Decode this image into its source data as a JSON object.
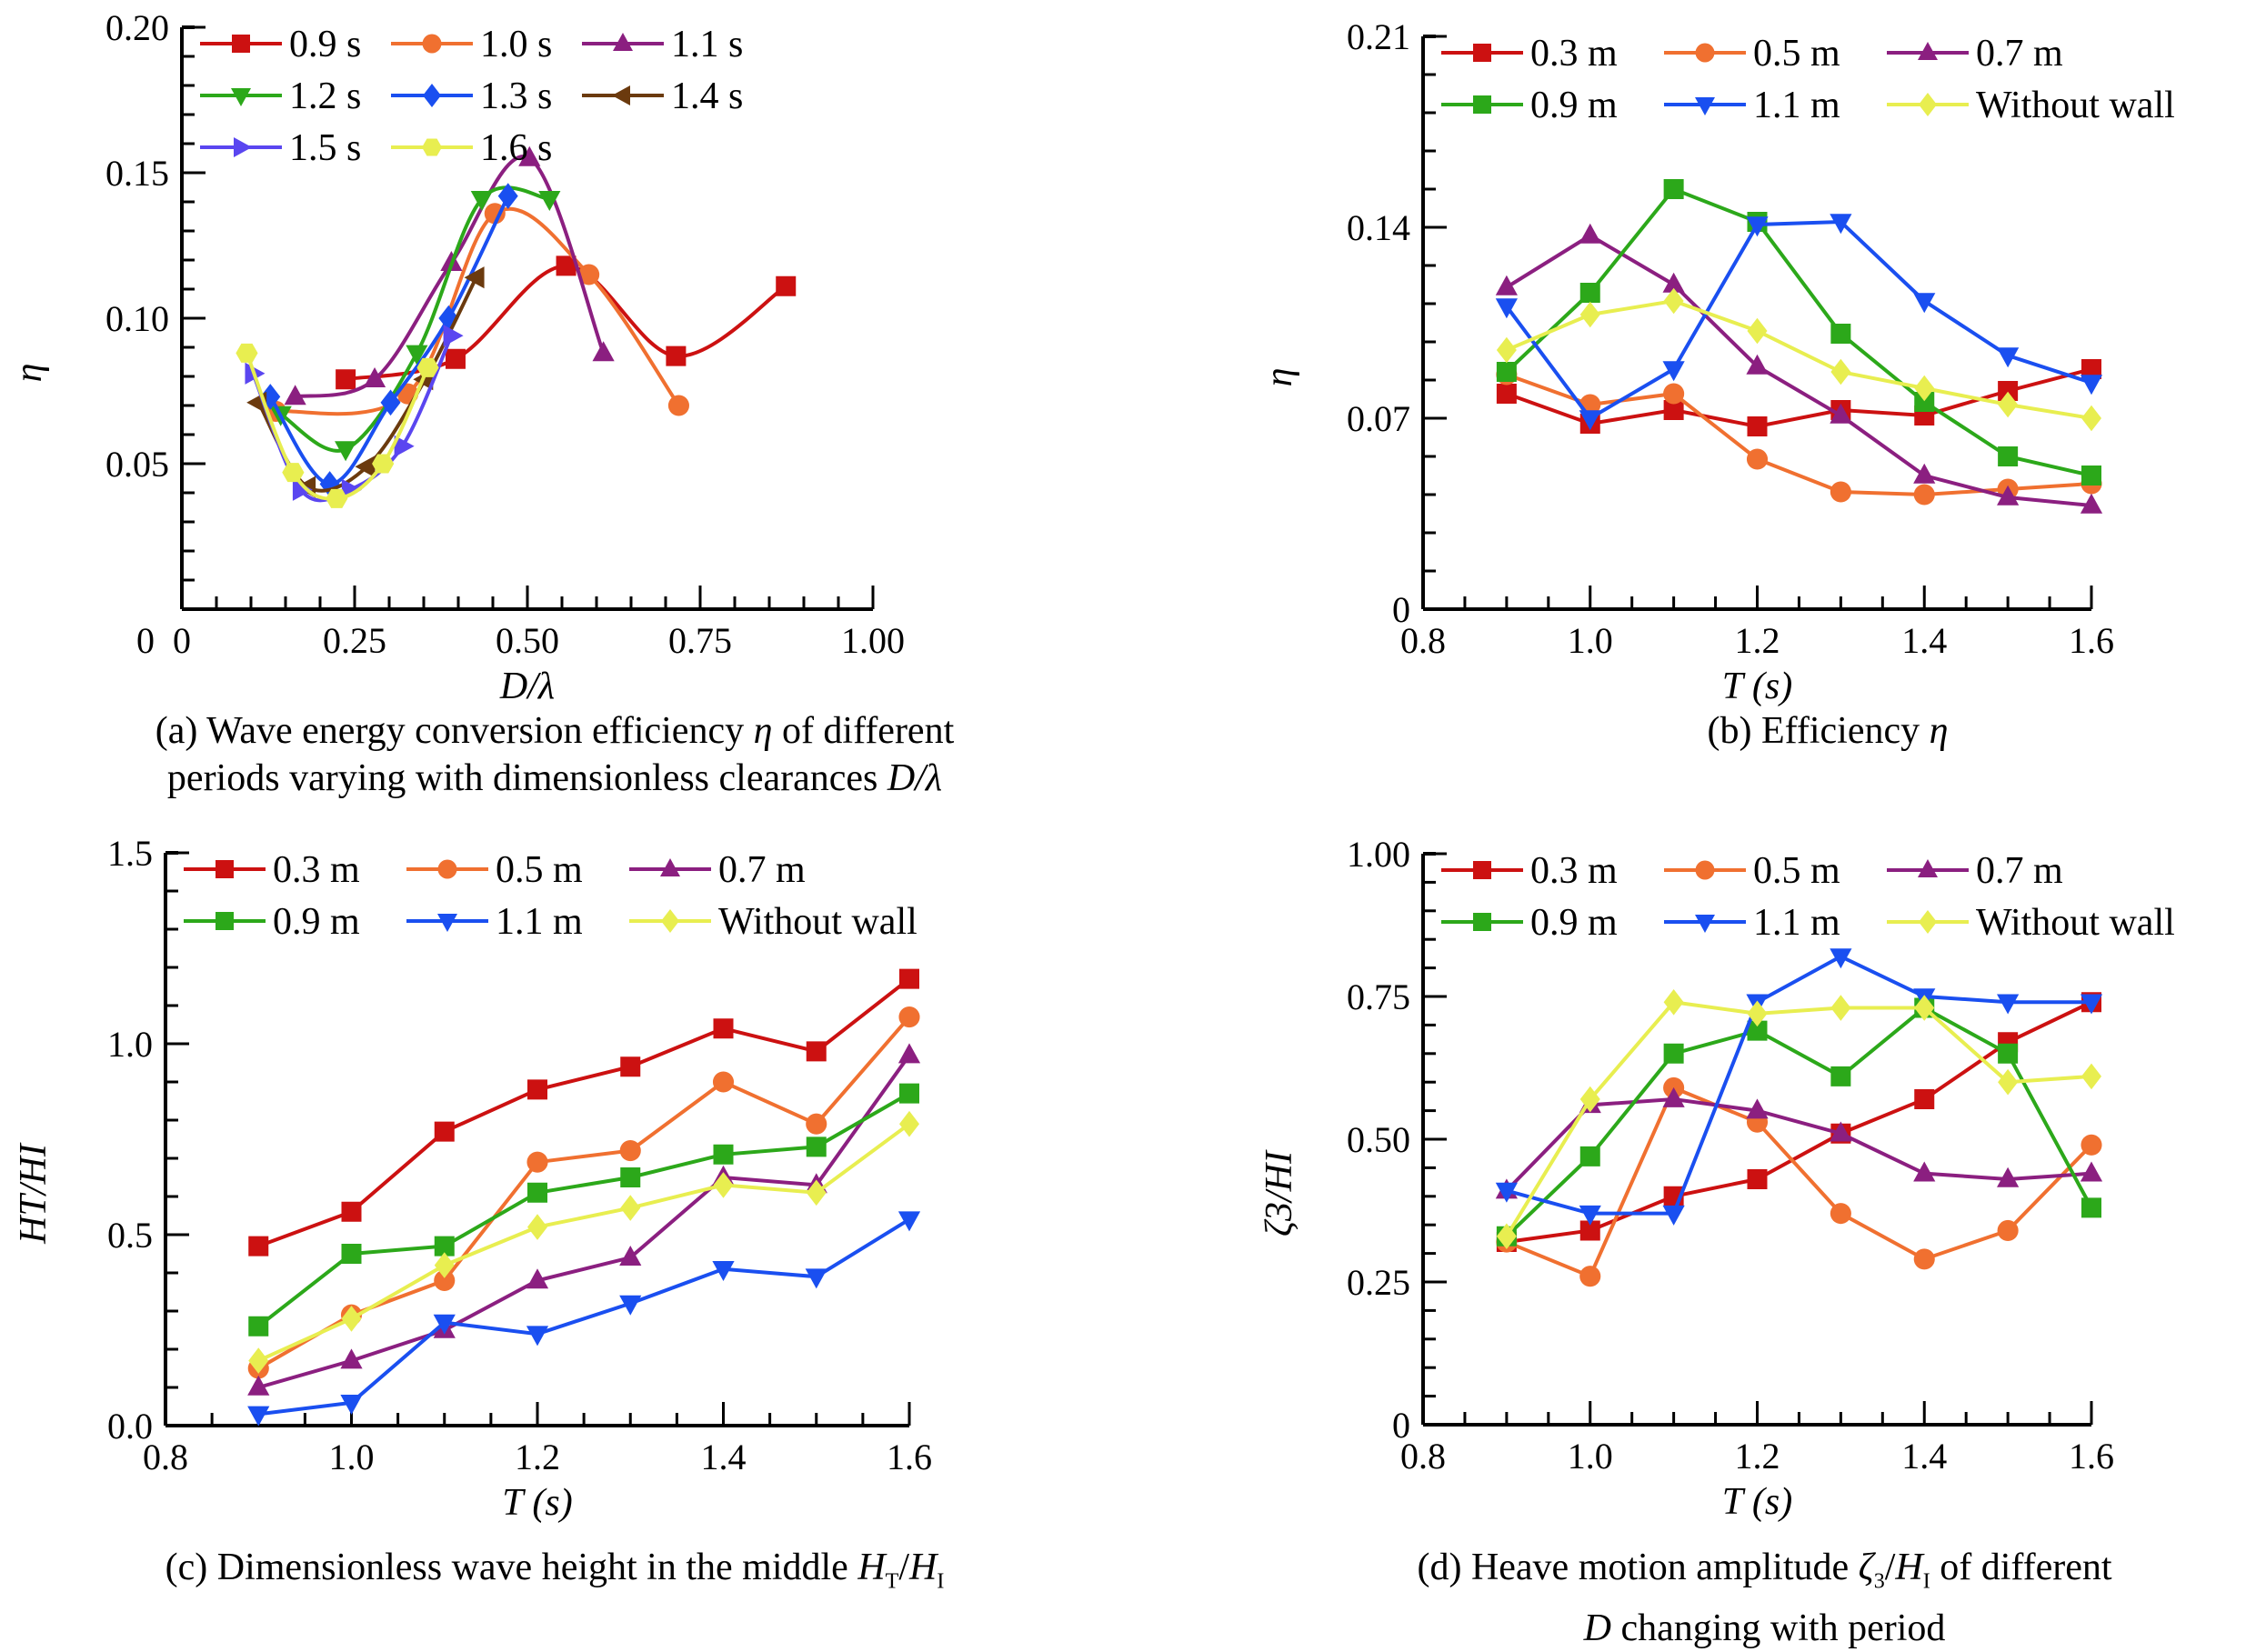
{
  "chart_data": [
    {
      "id": "a",
      "type": "line",
      "smooth": true,
      "title": "",
      "caption": "(a) Wave energy conversion efficiency η of different periods varying with dimensionless clearances D/λ",
      "xlabel": "D/λ",
      "ylabel": "η",
      "xlim": [
        0,
        1.0
      ],
      "ylim": [
        0,
        0.2
      ],
      "xticks": [
        "0",
        "0.25",
        "0.50",
        "0.75",
        "1.00"
      ],
      "xtick_values": [
        0,
        0.25,
        0.5,
        0.75,
        1.0
      ],
      "yticks": [
        "0.05",
        "0.10",
        "0.15",
        "0.20"
      ],
      "ytick_values": [
        0.05,
        0.1,
        0.15,
        0.2
      ],
      "x_minor_step": 0.05,
      "y_minor_step": 0.01,
      "legend_position": "top-left",
      "legend_columns": 3,
      "series": [
        {
          "name": "0.9 s",
          "color": "#cc1111",
          "marker": "square",
          "x": [
            0.237,
            0.396,
            0.556,
            0.715,
            0.874
          ],
          "y": [
            0.079,
            0.086,
            0.118,
            0.087,
            0.111
          ]
        },
        {
          "name": "1.0 s",
          "color": "#f07030",
          "marker": "circle",
          "x": [
            0.136,
            0.327,
            0.453,
            0.589,
            0.719
          ],
          "y": [
            0.068,
            0.074,
            0.136,
            0.115,
            0.07
          ]
        },
        {
          "name": "1.1 s",
          "color": "#8b1f80",
          "marker": "triangle-up",
          "x": [
            0.164,
            0.279,
            0.39,
            0.503,
            0.61
          ],
          "y": [
            0.073,
            0.079,
            0.119,
            0.155,
            0.088
          ]
        },
        {
          "name": "1.2 s",
          "color": "#2ca81a",
          "marker": "triangle-down",
          "x": [
            0.143,
            0.237,
            0.34,
            0.434,
            0.532
          ],
          "y": [
            0.067,
            0.055,
            0.088,
            0.141,
            0.141
          ]
        },
        {
          "name": "1.3 s",
          "color": "#1a4ff0",
          "marker": "diamond",
          "x": [
            0.128,
            0.214,
            0.302,
            0.386,
            0.472
          ],
          "y": [
            0.073,
            0.043,
            0.071,
            0.1,
            0.142
          ]
        },
        {
          "name": "1.4 s",
          "color": "#6b3a0e",
          "marker": "triangle-left",
          "x": [
            0.111,
            0.182,
            0.268,
            0.352,
            0.426
          ],
          "y": [
            0.071,
            0.042,
            0.049,
            0.079,
            0.114
          ]
        },
        {
          "name": "1.5 s",
          "color": "#5a46f0",
          "marker": "triangle-right",
          "x": [
            0.103,
            0.172,
            0.243,
            0.319,
            0.39
          ],
          "y": [
            0.081,
            0.041,
            0.041,
            0.056,
            0.094
          ]
        },
        {
          "name": "1.6 s",
          "color": "#e8ee50",
          "marker": "hexagon",
          "x": [
            0.094,
            0.161,
            0.224,
            0.291,
            0.356
          ],
          "y": [
            0.088,
            0.047,
            0.038,
            0.05,
            0.083
          ]
        }
      ]
    },
    {
      "id": "b",
      "type": "line",
      "smooth": false,
      "title": "",
      "caption": "(b) Efficiency η",
      "xlabel": "T (s)",
      "ylabel": "η",
      "xlim": [
        0.8,
        1.6
      ],
      "ylim": [
        0,
        0.21
      ],
      "xticks": [
        "0.8",
        "1.0",
        "1.2",
        "1.4",
        "1.6"
      ],
      "xtick_values": [
        0.8,
        1.0,
        1.2,
        1.4,
        1.6
      ],
      "yticks": [
        "0",
        "0.07",
        "0.14",
        "0.21"
      ],
      "ytick_values": [
        0,
        0.07,
        0.14,
        0.21
      ],
      "x_minor_step": 0.05,
      "y_minor_step": 0.014,
      "legend_position": "top",
      "legend_columns": 3,
      "x": [
        0.9,
        1.0,
        1.1,
        1.2,
        1.3,
        1.4,
        1.5,
        1.6
      ],
      "series": [
        {
          "name": "0.3 m",
          "color": "#cc1111",
          "marker": "square",
          "y": [
            0.079,
            0.068,
            0.073,
            0.067,
            0.073,
            0.071,
            0.08,
            0.088
          ]
        },
        {
          "name": "0.5 m",
          "color": "#f07030",
          "marker": "circle",
          "y": [
            0.086,
            0.075,
            0.079,
            0.055,
            0.043,
            0.042,
            0.044,
            0.046
          ]
        },
        {
          "name": "0.7 m",
          "color": "#8b1f80",
          "marker": "triangle-up",
          "y": [
            0.118,
            0.137,
            0.119,
            0.089,
            0.071,
            0.049,
            0.041,
            0.038
          ]
        },
        {
          "name": "0.9 m",
          "color": "#2ca81a",
          "marker": "square",
          "y": [
            0.087,
            0.116,
            0.154,
            0.142,
            0.101,
            0.076,
            0.056,
            0.049
          ]
        },
        {
          "name": "1.1 m",
          "color": "#1a4ff0",
          "marker": "triangle-down",
          "y": [
            0.111,
            0.07,
            0.088,
            0.141,
            0.142,
            0.113,
            0.093,
            0.083
          ]
        },
        {
          "name": "Without wall",
          "color": "#e8ee50",
          "marker": "diamond",
          "y": [
            0.095,
            0.108,
            0.113,
            0.102,
            0.087,
            0.081,
            0.075,
            0.07
          ]
        }
      ]
    },
    {
      "id": "c",
      "type": "line",
      "smooth": false,
      "title": "",
      "caption": "(c) Dimensionless wave height in the middle HT/HI",
      "xlabel": "T (s)",
      "ylabel": "HT/HI",
      "xlim": [
        0.8,
        1.6
      ],
      "ylim": [
        0,
        1.5
      ],
      "xticks": [
        "0.8",
        "1.0",
        "1.2",
        "1.4",
        "1.6"
      ],
      "xtick_values": [
        0.8,
        1.0,
        1.2,
        1.4,
        1.6
      ],
      "yticks": [
        "0.0",
        "0.5",
        "1.0",
        "1.5"
      ],
      "ytick_values": [
        0,
        0.5,
        1.0,
        1.5
      ],
      "x_minor_step": 0.05,
      "y_minor_step": 0.1,
      "legend_position": "top",
      "legend_columns": 3,
      "x": [
        0.9,
        1.0,
        1.1,
        1.2,
        1.3,
        1.4,
        1.5,
        1.6
      ],
      "series": [
        {
          "name": "0.3 m",
          "color": "#cc1111",
          "marker": "square",
          "y": [
            0.47,
            0.56,
            0.77,
            0.88,
            0.94,
            1.04,
            0.98,
            1.17
          ]
        },
        {
          "name": "0.5 m",
          "color": "#f07030",
          "marker": "circle",
          "y": [
            0.15,
            0.29,
            0.38,
            0.69,
            0.72,
            0.9,
            0.79,
            1.07
          ]
        },
        {
          "name": "0.7 m",
          "color": "#8b1f80",
          "marker": "triangle-up",
          "y": [
            0.1,
            0.17,
            0.25,
            0.38,
            0.44,
            0.65,
            0.63,
            0.97
          ]
        },
        {
          "name": "0.9 m",
          "color": "#2ca81a",
          "marker": "square",
          "y": [
            0.26,
            0.45,
            0.47,
            0.61,
            0.65,
            0.71,
            0.73,
            0.87
          ]
        },
        {
          "name": "1.1 m",
          "color": "#1a4ff0",
          "marker": "triangle-down",
          "y": [
            0.03,
            0.06,
            0.27,
            0.24,
            0.32,
            0.41,
            0.39,
            0.54
          ]
        },
        {
          "name": "Without wall",
          "color": "#e8ee50",
          "marker": "diamond",
          "y": [
            0.17,
            0.28,
            0.42,
            0.52,
            0.57,
            0.63,
            0.61,
            0.79
          ]
        }
      ]
    },
    {
      "id": "d",
      "type": "line",
      "smooth": false,
      "title": "",
      "caption": "(d) Heave motion amplitude ζ3/HI of different D changing with period",
      "xlabel": "T (s)",
      "ylabel": "ζ3/HI",
      "xlim": [
        0.8,
        1.6
      ],
      "ylim": [
        0,
        1.0
      ],
      "xticks": [
        "0.8",
        "1.0",
        "1.2",
        "1.4",
        "1.6"
      ],
      "xtick_values": [
        0.8,
        1.0,
        1.2,
        1.4,
        1.6
      ],
      "yticks": [
        "0",
        "0.25",
        "0.50",
        "0.75",
        "1.00"
      ],
      "ytick_values": [
        0,
        0.25,
        0.5,
        0.75,
        1.0
      ],
      "x_minor_step": 0.05,
      "y_minor_step": 0.05,
      "legend_position": "top",
      "legend_columns": 3,
      "x": [
        0.9,
        1.0,
        1.1,
        1.2,
        1.3,
        1.4,
        1.5,
        1.6
      ],
      "series": [
        {
          "name": "0.3 m",
          "color": "#cc1111",
          "marker": "square",
          "y": [
            0.32,
            0.34,
            0.4,
            0.43,
            0.51,
            0.57,
            0.67,
            0.74
          ]
        },
        {
          "name": "0.5 m",
          "color": "#f07030",
          "marker": "circle",
          "y": [
            0.32,
            0.26,
            0.59,
            0.53,
            0.37,
            0.29,
            0.34,
            0.49
          ]
        },
        {
          "name": "0.7 m",
          "color": "#8b1f80",
          "marker": "triangle-up",
          "y": [
            0.41,
            0.56,
            0.57,
            0.55,
            0.51,
            0.44,
            0.43,
            0.44
          ]
        },
        {
          "name": "0.9 m",
          "color": "#2ca81a",
          "marker": "square",
          "y": [
            0.33,
            0.47,
            0.65,
            0.69,
            0.61,
            0.73,
            0.65,
            0.38
          ]
        },
        {
          "name": "1.1 m",
          "color": "#1a4ff0",
          "marker": "triangle-down",
          "y": [
            0.41,
            0.37,
            0.37,
            0.74,
            0.82,
            0.75,
            0.74,
            0.74
          ]
        },
        {
          "name": "Without wall",
          "color": "#e8ee50",
          "marker": "diamond",
          "y": [
            0.33,
            0.57,
            0.74,
            0.72,
            0.73,
            0.73,
            0.6,
            0.61
          ]
        }
      ]
    }
  ],
  "captions": {
    "a_line1_pre": "(a) Wave energy conversion efficiency ",
    "a_line1_sym": "η",
    "a_line1_post": " of different",
    "a_line2_pre": "periods varying with dimensionless clearances ",
    "a_line2_sym": "D/λ",
    "b_pre": "(b) Efficiency ",
    "b_sym": "η",
    "c_pre": "(c) Dimensionless wave height in the middle ",
    "c_sym_h1": "H",
    "c_sub_t": "T",
    "c_slash": "/",
    "c_sym_h2": "H",
    "c_sub_i": "I",
    "d_line1_pre": "(d) Heave motion amplitude ",
    "d_sym_zeta": "ζ",
    "d_sub_3": "3",
    "d_slash": "/",
    "d_sym_h": "H",
    "d_sub_i": "I",
    "d_line1_post": " of different",
    "d_line2_sym": "D",
    "d_line2_post": " changing with period"
  }
}
